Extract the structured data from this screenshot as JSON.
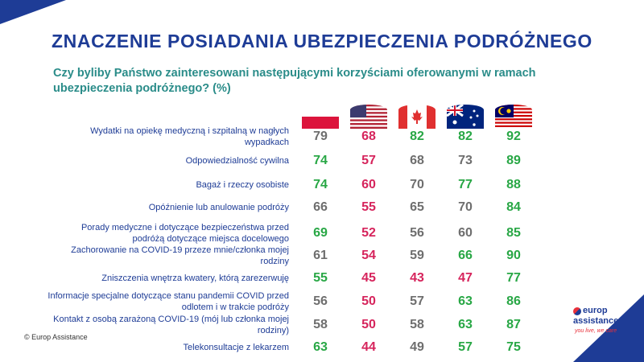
{
  "title": "ZNACZENIE POSIADANIA UBEZPIECZENIA PODRÓŻNEGO",
  "subtitle": "Czy byliby Państwo zainteresowani następującymi korzyściami oferowanymi w ramach ubezpieczenia podróżnego? (%)",
  "copyright": "© Europ Assistance",
  "logo": {
    "line1": "europ",
    "line2": "assistance",
    "tagline": "you live, we care"
  },
  "flags": [
    "poland-flag-icon",
    "usa-flag-icon",
    "canada-flag-icon",
    "australia-flag-icon",
    "malaysia-flag-icon"
  ],
  "colors": {
    "accent": "#1e3c96",
    "subtitle": "#2a8c89",
    "green": "#28a745",
    "red": "#d6245c",
    "gray": "#6e6e6e"
  },
  "chart_data": {
    "type": "table",
    "categories": [
      "Wydatki na opiekę medyczną i szpitalną w nagłych wypadkach",
      "Odpowiedzialność cywilna",
      "Bagaż i rzeczy osobiste",
      "Opóźnienie lub anulowanie podróży",
      "Porady medyczne i dotyczące bezpieczeństwa przed podróżą dotyczące miejsca docelowego",
      "Zachorowanie na COVID-19 przeze mnie/członka mojej rodziny",
      "Zniszczenia wnętrza kwatery, którą zarezerwuję",
      "Informacje specjalne dotyczące stanu pandemii COVID przed odlotem i w trakcie podróży",
      "Kontakt z osobą zarażoną COVID-19 (mój lub członka mojej rodziny)",
      "Telekonsultacje z lekarzem"
    ],
    "rows": [
      [
        79,
        68,
        82,
        82,
        92
      ],
      [
        74,
        57,
        68,
        73,
        89
      ],
      [
        74,
        60,
        70,
        77,
        88
      ],
      [
        66,
        55,
        65,
        70,
        84
      ],
      [
        69,
        52,
        56,
        60,
        85
      ],
      [
        61,
        54,
        59,
        66,
        90
      ],
      [
        55,
        45,
        43,
        47,
        77
      ],
      [
        56,
        50,
        57,
        63,
        86
      ],
      [
        58,
        50,
        58,
        63,
        87
      ],
      [
        63,
        44,
        49,
        57,
        75
      ]
    ],
    "cell_colors": [
      [
        "gray",
        "red",
        "green",
        "green",
        "green"
      ],
      [
        "green",
        "red",
        "gray",
        "gray",
        "green"
      ],
      [
        "green",
        "red",
        "gray",
        "green",
        "green"
      ],
      [
        "gray",
        "red",
        "gray",
        "gray",
        "green"
      ],
      [
        "green",
        "red",
        "gray",
        "gray",
        "green"
      ],
      [
        "gray",
        "red",
        "gray",
        "green",
        "green"
      ],
      [
        "green",
        "red",
        "red",
        "red",
        "green"
      ],
      [
        "gray",
        "red",
        "gray",
        "green",
        "green"
      ],
      [
        "gray",
        "red",
        "gray",
        "green",
        "green"
      ],
      [
        "green",
        "red",
        "gray",
        "green",
        "green"
      ]
    ]
  }
}
